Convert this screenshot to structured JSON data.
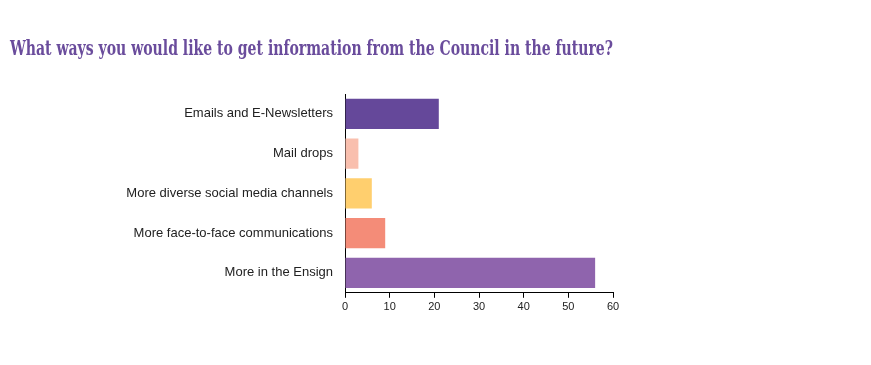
{
  "chart_data": {
    "type": "bar",
    "orientation": "horizontal",
    "title": "What ways you would like to get information from the Council in the future?",
    "categories": [
      "Emails and E-Newsletters",
      "Mail drops",
      "More diverse social media channels",
      "More face-to-face communications",
      "More in the Ensign"
    ],
    "values": [
      21,
      3,
      6,
      9,
      56
    ],
    "colors": [
      "#65489a",
      "#f9bfae",
      "#ffcf6e",
      "#f48c78",
      "#8f64ad"
    ],
    "xlim": [
      0,
      60
    ],
    "xticks": [
      0,
      10,
      20,
      30,
      40,
      50,
      60
    ],
    "grid": false
  }
}
